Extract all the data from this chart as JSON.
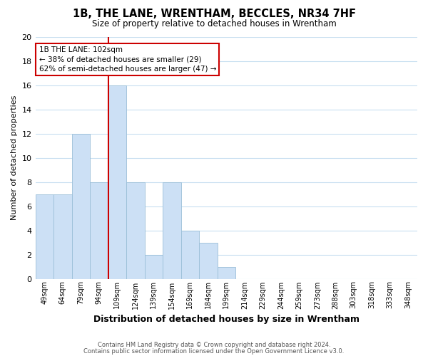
{
  "title": "1B, THE LANE, WRENTHAM, BECCLES, NR34 7HF",
  "subtitle": "Size of property relative to detached houses in Wrentham",
  "xlabel": "Distribution of detached houses by size in Wrentham",
  "ylabel": "Number of detached properties",
  "bar_labels": [
    "49sqm",
    "64sqm",
    "79sqm",
    "94sqm",
    "109sqm",
    "124sqm",
    "139sqm",
    "154sqm",
    "169sqm",
    "184sqm",
    "199sqm",
    "214sqm",
    "229sqm",
    "244sqm",
    "259sqm",
    "273sqm",
    "288sqm",
    "303sqm",
    "318sqm",
    "333sqm",
    "348sqm"
  ],
  "bar_values": [
    7,
    7,
    12,
    8,
    16,
    8,
    2,
    8,
    4,
    3,
    1,
    0,
    0,
    0,
    0,
    0,
    0,
    0,
    0,
    0,
    0
  ],
  "bar_color": "#cce0f5",
  "bar_edge_color": "#9bbfd8",
  "vline_color": "#cc0000",
  "ylim": [
    0,
    20
  ],
  "yticks": [
    0,
    2,
    4,
    6,
    8,
    10,
    12,
    14,
    16,
    18,
    20
  ],
  "annotation_title": "1B THE LANE: 102sqm",
  "annotation_line1": "← 38% of detached houses are smaller (29)",
  "annotation_line2": "62% of semi-detached houses are larger (47) →",
  "footer_line1": "Contains HM Land Registry data © Crown copyright and database right 2024.",
  "footer_line2": "Contains public sector information licensed under the Open Government Licence v3.0.",
  "background_color": "#ffffff",
  "grid_color": "#c8dff0"
}
